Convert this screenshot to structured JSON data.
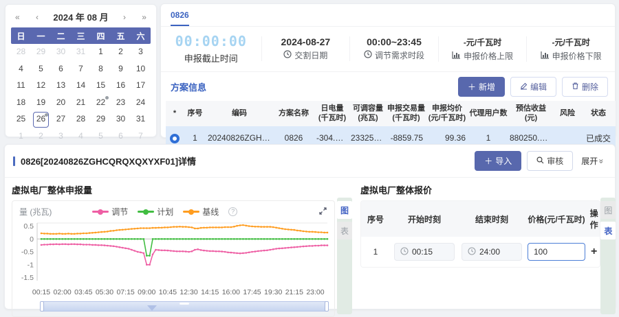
{
  "calendar": {
    "title": "2024 年 08 月",
    "nav": {
      "prev_year": "«",
      "prev_month": "‹",
      "next_month": "›",
      "next_year": "»"
    },
    "weekdays": [
      "日",
      "一",
      "二",
      "三",
      "四",
      "五",
      "六"
    ],
    "days": [
      {
        "d": "28",
        "m": 1
      },
      {
        "d": "29",
        "m": 1
      },
      {
        "d": "30",
        "m": 1
      },
      {
        "d": "31",
        "m": 1
      },
      {
        "d": "1"
      },
      {
        "d": "2"
      },
      {
        "d": "3"
      },
      {
        "d": "4"
      },
      {
        "d": "5"
      },
      {
        "d": "6"
      },
      {
        "d": "7"
      },
      {
        "d": "8"
      },
      {
        "d": "9"
      },
      {
        "d": "10"
      },
      {
        "d": "11"
      },
      {
        "d": "12"
      },
      {
        "d": "13"
      },
      {
        "d": "14"
      },
      {
        "d": "15"
      },
      {
        "d": "16"
      },
      {
        "d": "17"
      },
      {
        "d": "18"
      },
      {
        "d": "19"
      },
      {
        "d": "20"
      },
      {
        "d": "21"
      },
      {
        "d": "22",
        "dot": 1
      },
      {
        "d": "23"
      },
      {
        "d": "24"
      },
      {
        "d": "25"
      },
      {
        "d": "26",
        "dot": 1,
        "sel": 1
      },
      {
        "d": "27"
      },
      {
        "d": "28"
      },
      {
        "d": "29"
      },
      {
        "d": "30"
      },
      {
        "d": "31"
      },
      {
        "d": "1",
        "m": 1
      },
      {
        "d": "2",
        "m": 1
      },
      {
        "d": "3",
        "m": 1
      },
      {
        "d": "4",
        "m": 1
      },
      {
        "d": "5",
        "m": 1
      },
      {
        "d": "6",
        "m": 1
      },
      {
        "d": "7",
        "m": 1
      }
    ]
  },
  "plan_panel": {
    "tab": "0826",
    "stats": [
      {
        "value": "00:00:00",
        "label": "申报截止时间",
        "icon": "none"
      },
      {
        "value": "2024-08-27",
        "label": "交割日期",
        "icon": "clock"
      },
      {
        "value": "00:00~23:45",
        "label": "调节需求时段",
        "icon": "clock"
      },
      {
        "value": "-元/千瓦时",
        "label": "申报价格上限",
        "icon": "bar-chart"
      },
      {
        "value": "-元/千瓦时",
        "label": "申报价格下限",
        "icon": "bar-chart"
      }
    ],
    "section_title": "方案信息",
    "buttons": {
      "add": "新增",
      "edit": "编辑",
      "delete": "删除"
    },
    "table": {
      "headers": [
        "*",
        "序号",
        "编码",
        "方案名称",
        "日电量\n(千瓦时)",
        "可调容量\n(兆瓦)",
        "申报交易量\n(千瓦时)",
        "申报均价\n(元/千瓦时)",
        "代理用户数",
        "预估收益\n(元)",
        "风险",
        "状态"
      ],
      "row": [
        "1",
        "20240826ZGHC...",
        "0826",
        "-304.500",
        "23325.000",
        "-8859.75",
        "99.36",
        "1",
        "880250.000",
        "",
        "已成交"
      ]
    }
  },
  "detail_panel": {
    "title": "0826[20240826ZGHCQRQXQXYXF01]详情",
    "buttons": {
      "import": "导入",
      "audit": "审核",
      "expand": "展开"
    },
    "side_tabs": {
      "chart": "图",
      "table": "表"
    },
    "declaration_chart": {
      "title": "虚拟电厂整体申报量",
      "y_label": "量 (兆瓦)",
      "help": "?"
    },
    "quote_table": {
      "title": "虚拟电厂整体报价",
      "headers": [
        "序号",
        "开始时刻",
        "结束时刻",
        "价格(元/千瓦时)",
        "操作"
      ],
      "row": {
        "seq": "1",
        "start": "00:15",
        "end": "24:00",
        "price": "100",
        "action": "+"
      }
    }
  },
  "chart_data": {
    "type": "line",
    "title": "虚拟电厂整体申报量",
    "ylabel": "量 (兆瓦)",
    "ylim": [
      -1.5,
      0.5
    ],
    "yticks": [
      0.5,
      0,
      -0.5,
      -1,
      -1.5
    ],
    "x_interval_minutes": 15,
    "x_tick_labels": [
      "00:15",
      "02:00",
      "03:45",
      "05:30",
      "07:15",
      "09:00",
      "10:45",
      "12:30",
      "14:15",
      "16:00",
      "17:45",
      "19:30",
      "21:15",
      "23:00"
    ],
    "legend_position": "top-center",
    "grid": false,
    "series": [
      {
        "name": "调节",
        "color": "#ee5fa4",
        "values": [
          -0.23,
          -0.22,
          -0.22,
          -0.21,
          -0.21,
          -0.2,
          -0.21,
          -0.2,
          -0.2,
          -0.21,
          -0.2,
          -0.2,
          -0.21,
          -0.21,
          -0.22,
          -0.22,
          -0.22,
          -0.23,
          -0.23,
          -0.24,
          -0.24,
          -0.25,
          -0.26,
          -0.27,
          -0.28,
          -0.3,
          -0.32,
          -0.34,
          -0.36,
          -0.38,
          -0.42,
          -0.46,
          -0.5,
          -0.52,
          -0.55,
          -1.0,
          -1.0,
          -0.6,
          -0.42,
          -0.43,
          -0.44,
          -0.44,
          -0.45,
          -0.46,
          -0.47,
          -0.48,
          -0.48,
          -0.48,
          -0.49,
          -0.5,
          -0.48,
          -0.42,
          -0.4,
          -0.43,
          -0.45,
          -0.46,
          -0.47,
          -0.47,
          -0.48,
          -0.48,
          -0.49,
          -0.5,
          -0.52,
          -0.53,
          -0.54,
          -0.55,
          -0.56,
          -0.55,
          -0.54,
          -0.52,
          -0.5,
          -0.49,
          -0.47,
          -0.46,
          -0.45,
          -0.44,
          -0.42,
          -0.4,
          -0.38,
          -0.37,
          -0.36,
          -0.35,
          -0.34,
          -0.33,
          -0.32,
          -0.31,
          -0.3,
          -0.29,
          -0.28,
          -0.27,
          -0.27,
          -0.26,
          -0.26,
          -0.25,
          -0.25,
          -0.25
        ]
      },
      {
        "name": "计划",
        "color": "#41bd41",
        "values": [
          0,
          0,
          0,
          0,
          0,
          0,
          0,
          0,
          0,
          0,
          0,
          0,
          0,
          0,
          0,
          0,
          0,
          0,
          0,
          0,
          0,
          0,
          0,
          0,
          0,
          0,
          0,
          0,
          0,
          0,
          0,
          0,
          0,
          0,
          0,
          -0.65,
          -0.65,
          0,
          0,
          0,
          0,
          0,
          0,
          0,
          0,
          0,
          0,
          0,
          0,
          0,
          0,
          0,
          0,
          0,
          0,
          0,
          0,
          0,
          0,
          0,
          0,
          0,
          0,
          0,
          0,
          0,
          0,
          0,
          0,
          0,
          0,
          0,
          0,
          0,
          0,
          0,
          0,
          0,
          0,
          0,
          0,
          0,
          0,
          0,
          0,
          0,
          0,
          0,
          0,
          0,
          0,
          0,
          0,
          0,
          0,
          0
        ]
      },
      {
        "name": "基线",
        "color": "#ff9d20",
        "values": [
          0.22,
          0.21,
          0.21,
          0.2,
          0.2,
          0.2,
          0.21,
          0.2,
          0.2,
          0.21,
          0.2,
          0.2,
          0.21,
          0.21,
          0.22,
          0.22,
          0.23,
          0.24,
          0.25,
          0.26,
          0.27,
          0.28,
          0.29,
          0.31,
          0.32,
          0.34,
          0.35,
          0.36,
          0.37,
          0.38,
          0.39,
          0.4,
          0.41,
          0.42,
          0.42,
          0.42,
          0.42,
          0.43,
          0.43,
          0.44,
          0.44,
          0.45,
          0.45,
          0.46,
          0.47,
          0.47,
          0.48,
          0.47,
          0.47,
          0.46,
          0.45,
          0.41,
          0.41,
          0.43,
          0.44,
          0.44,
          0.45,
          0.45,
          0.45,
          0.45,
          0.45,
          0.46,
          0.46,
          0.46,
          0.48,
          0.51,
          0.53,
          0.54,
          0.52,
          0.5,
          0.49,
          0.48,
          0.48,
          0.47,
          0.47,
          0.47,
          0.47,
          0.46,
          0.44,
          0.42,
          0.4,
          0.38,
          0.37,
          0.36,
          0.35,
          0.33,
          0.32,
          0.3,
          0.29,
          0.28,
          0.28,
          0.27,
          0.26,
          0.26,
          0.25,
          0.25
        ]
      }
    ]
  }
}
